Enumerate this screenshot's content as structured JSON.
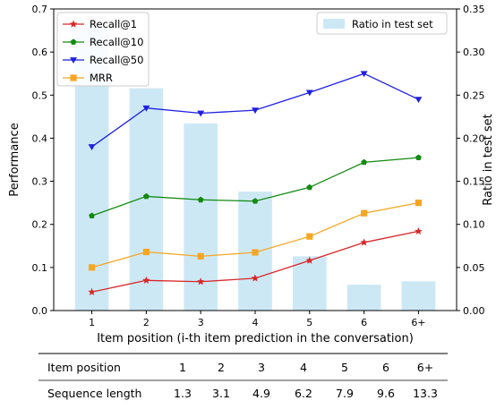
{
  "chart_data": {
    "type": "bar+line",
    "categories": [
      "1",
      "2",
      "3",
      "4",
      "5",
      "6",
      "6+"
    ],
    "xlabel": "Item position (i-th item prediction in the conversation)",
    "ylabel": "Performance",
    "ylabel_right": "Ratio in test set",
    "ylim": [
      0,
      0.7
    ],
    "ylim_right": [
      0,
      0.35
    ],
    "yticks": [
      "0.0",
      "0.1",
      "0.2",
      "0.3",
      "0.4",
      "0.5",
      "0.6",
      "0.7"
    ],
    "yticks_right": [
      "0.00",
      "0.05",
      "0.10",
      "0.15",
      "0.20",
      "0.25",
      "0.30",
      "0.35"
    ],
    "legend_left_position": "upper-left",
    "legend_right_position": "upper-right",
    "bars": {
      "name": "Ratio in test set",
      "color": "#cde8f5",
      "values": [
        0.33,
        0.258,
        0.217,
        0.138,
        0.063,
        0.03,
        0.034
      ]
    },
    "series": [
      {
        "name": "Recall@1",
        "color": "#d62728",
        "marker": "star",
        "values": [
          0.043,
          0.07,
          0.067,
          0.075,
          0.116,
          0.158,
          0.184
        ]
      },
      {
        "name": "Recall@10",
        "color": "#138a13",
        "marker": "pentagon",
        "values": [
          0.22,
          0.265,
          0.257,
          0.254,
          0.286,
          0.344,
          0.355
        ]
      },
      {
        "name": "Recall@50",
        "color": "#1f1fe0",
        "marker": "tri-down",
        "values": [
          0.38,
          0.47,
          0.458,
          0.465,
          0.506,
          0.55,
          0.49
        ]
      },
      {
        "name": "MRR",
        "color": "#f5a623",
        "marker": "square",
        "values": [
          0.1,
          0.136,
          0.126,
          0.135,
          0.172,
          0.226,
          0.25
        ]
      }
    ]
  },
  "table": {
    "rows": [
      {
        "label": "Item position",
        "values": [
          "1",
          "2",
          "3",
          "4",
          "5",
          "6",
          "6+"
        ]
      },
      {
        "label": "Sequence length",
        "values": [
          "1.3",
          "3.1",
          "4.9",
          "6.2",
          "7.9",
          "9.6",
          "13.3"
        ]
      }
    ]
  }
}
